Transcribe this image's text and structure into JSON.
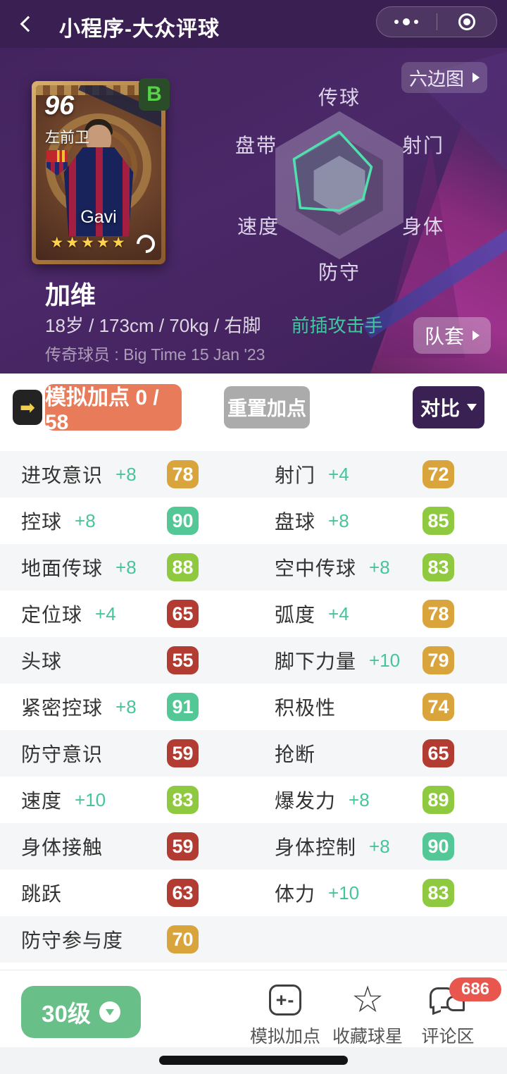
{
  "header": {
    "title": "小程序-大众评球"
  },
  "hero": {
    "hexmap_button": "六边图",
    "team_button": "队套",
    "card": {
      "rating": "96",
      "position": "左前卫",
      "player_name_en": "Gavi",
      "grade": "B",
      "stars": "★★★★★"
    },
    "player": {
      "name": "加维",
      "details": "18岁 / 173cm / 70kg / 右脚",
      "role": "前插攻击手",
      "legend": "传奇球员 : Big Time 15 Jan '23"
    }
  },
  "chart_data": {
    "type": "radar",
    "title": "六边图",
    "labels": [
      "传球",
      "射门",
      "身体",
      "防守",
      "速度",
      "盘带"
    ],
    "values_pct_of_max": [
      72,
      50,
      37,
      34,
      61,
      71
    ],
    "rings_pct": [
      100,
      68,
      40
    ],
    "stroke": "#4ee0ad",
    "legend_position": "none",
    "grid": "hexagon"
  },
  "toolbar": {
    "arrow_icon": "➡",
    "sim_label": "模拟加点 0 / 58",
    "reset_label": "重置加点",
    "compare_label": "对比"
  },
  "stats": {
    "rows": [
      {
        "left": {
          "label": "进攻意识",
          "boost": "+8",
          "value": "78",
          "tier": "amber"
        },
        "right": {
          "label": "射门",
          "boost": "+4",
          "value": "72",
          "tier": "amber"
        }
      },
      {
        "left": {
          "label": "控球",
          "boost": "+8",
          "value": "90",
          "tier": "teal"
        },
        "right": {
          "label": "盘球",
          "boost": "+8",
          "value": "85",
          "tier": "green"
        }
      },
      {
        "left": {
          "label": "地面传球",
          "boost": "+8",
          "value": "88",
          "tier": "green"
        },
        "right": {
          "label": "空中传球",
          "boost": "+8",
          "value": "83",
          "tier": "green"
        }
      },
      {
        "left": {
          "label": "定位球",
          "boost": "+4",
          "value": "65",
          "tier": "red"
        },
        "right": {
          "label": "弧度",
          "boost": "+4",
          "value": "78",
          "tier": "amber"
        }
      },
      {
        "left": {
          "label": "头球",
          "boost": "",
          "value": "55",
          "tier": "red"
        },
        "right": {
          "label": "脚下力量",
          "boost": "+10",
          "value": "79",
          "tier": "amber"
        }
      },
      {
        "left": {
          "label": "紧密控球",
          "boost": "+8",
          "value": "91",
          "tier": "teal"
        },
        "right": {
          "label": "积极性",
          "boost": "",
          "value": "74",
          "tier": "amber"
        }
      },
      {
        "left": {
          "label": "防守意识",
          "boost": "",
          "value": "59",
          "tier": "red"
        },
        "right": {
          "label": "抢断",
          "boost": "",
          "value": "65",
          "tier": "red"
        }
      },
      {
        "left": {
          "label": "速度",
          "boost": "+10",
          "value": "83",
          "tier": "green"
        },
        "right": {
          "label": "爆发力",
          "boost": "+8",
          "value": "89",
          "tier": "green"
        }
      },
      {
        "left": {
          "label": "身体接触",
          "boost": "",
          "value": "59",
          "tier": "red"
        },
        "right": {
          "label": "身体控制",
          "boost": "+8",
          "value": "90",
          "tier": "teal"
        }
      },
      {
        "left": {
          "label": "跳跃",
          "boost": "",
          "value": "63",
          "tier": "red"
        },
        "right": {
          "label": "体力",
          "boost": "+10",
          "value": "83",
          "tier": "green"
        }
      },
      {
        "left": {
          "label": "防守参与度",
          "boost": "",
          "value": "70",
          "tier": "amber"
        },
        "right": null
      }
    ]
  },
  "footer": {
    "level_label": "30级",
    "actions": [
      {
        "icon": "plus-minus",
        "glyph": "+-",
        "label": "模拟加点"
      },
      {
        "icon": "star",
        "glyph": "☆",
        "label": "收藏球星"
      },
      {
        "icon": "comments",
        "glyph": "",
        "label": "评论区",
        "badge": "686"
      }
    ]
  },
  "colors": {
    "header_purple": "#3a2052",
    "hero_purple": "#4b2868",
    "accent_magenta": "#a23390",
    "accent_teal": "#3fc9a0",
    "radar_stroke": "#4ee0ad",
    "orange_button": "#e87b5a",
    "gray_button": "#ababab",
    "purple_button": "#3a2153",
    "level_green": "#68bf87",
    "badge_amber": "#d9a43c",
    "badge_green": "#8fc93f",
    "badge_teal": "#53c795",
    "badge_red": "#b23c31",
    "count_badge_red": "#e8564e",
    "grade_badge_green": "#57d348"
  }
}
